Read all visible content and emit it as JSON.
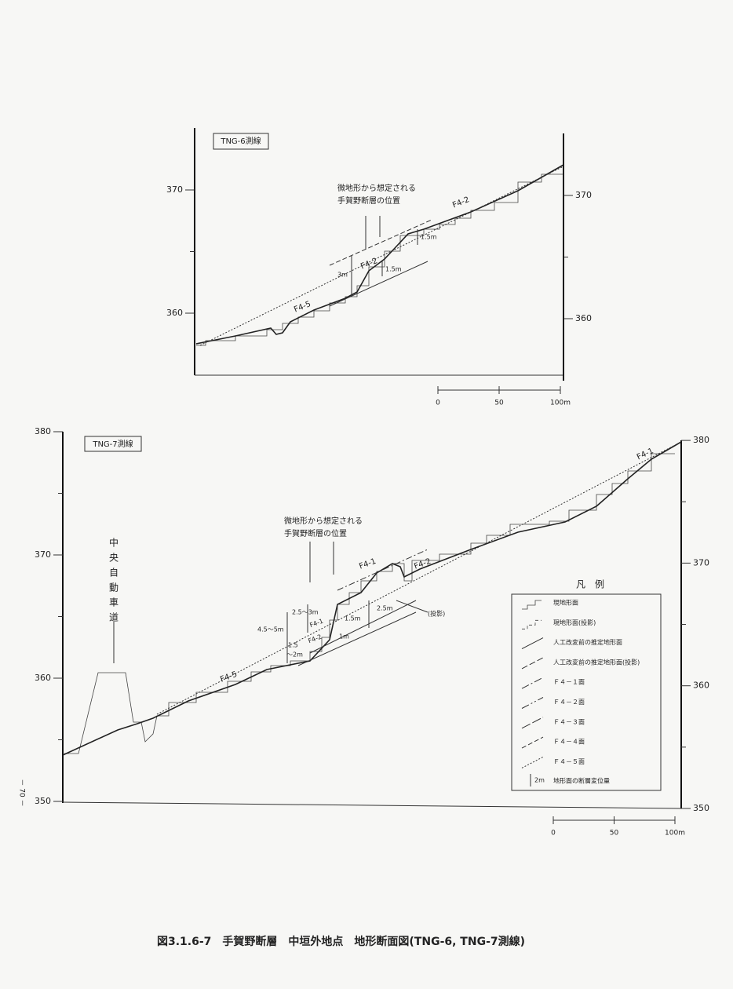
{
  "profile_tng6": {
    "label": "TNG-6測線",
    "left_ticks": [
      360,
      370
    ],
    "right_ticks": [
      360,
      370
    ],
    "fault_note": [
      "微地形から想定される",
      "手賀野断層の位置"
    ],
    "surfaces": [
      "F4-2",
      "F4-2",
      "F4-5"
    ],
    "offsets": [
      "1.5m",
      "1.5m",
      "3m"
    ],
    "scale": {
      "xlim": [
        0,
        100
      ],
      "ticks": [
        0,
        50,
        {
          "value": 100,
          "label": "100m"
        }
      ]
    }
  },
  "profile_tng7": {
    "label": "TNG-7測線",
    "left_ticks": [
      350,
      360,
      370,
      380
    ],
    "right_ticks": [
      350,
      360,
      370,
      380
    ],
    "road": [
      "中",
      "央",
      "自",
      "動",
      "車",
      "道"
    ],
    "fault_note": [
      "微地形から想定される",
      "手賀野断層の位置"
    ],
    "surfaces": [
      "F4-1",
      "F4-2",
      "F4-1",
      "F4-2",
      "F4-5",
      "F4-1"
    ],
    "offsets": [
      "2.5～3m",
      "4.5～5m",
      "1.5",
      "～2m",
      "1.5m",
      "1m",
      "2.5m"
    ],
    "projection_note": "(投影)",
    "scale": {
      "xlim": [
        0,
        100
      ],
      "ticks": [
        0,
        50,
        {
          "value": 100,
          "label": "100m"
        }
      ]
    }
  },
  "legend": {
    "title": "凡　例",
    "items": [
      "現地形面",
      "現地形面(投影)",
      "人工改変前の推定地形面",
      "人工改変前の推定地形面(投影)",
      "Ｆ４－１面",
      "Ｆ４－２面",
      "Ｆ４－３面",
      "Ｆ４－４面",
      "Ｆ４－５面"
    ],
    "offset_sample": "2m",
    "offset_item": "地形面の断層変位量"
  },
  "page_number": "－ 70 －",
  "caption": "図3.1.6-7　手賀野断層　中垣外地点　地形断面図(TNG-6, TNG-7測線)"
}
